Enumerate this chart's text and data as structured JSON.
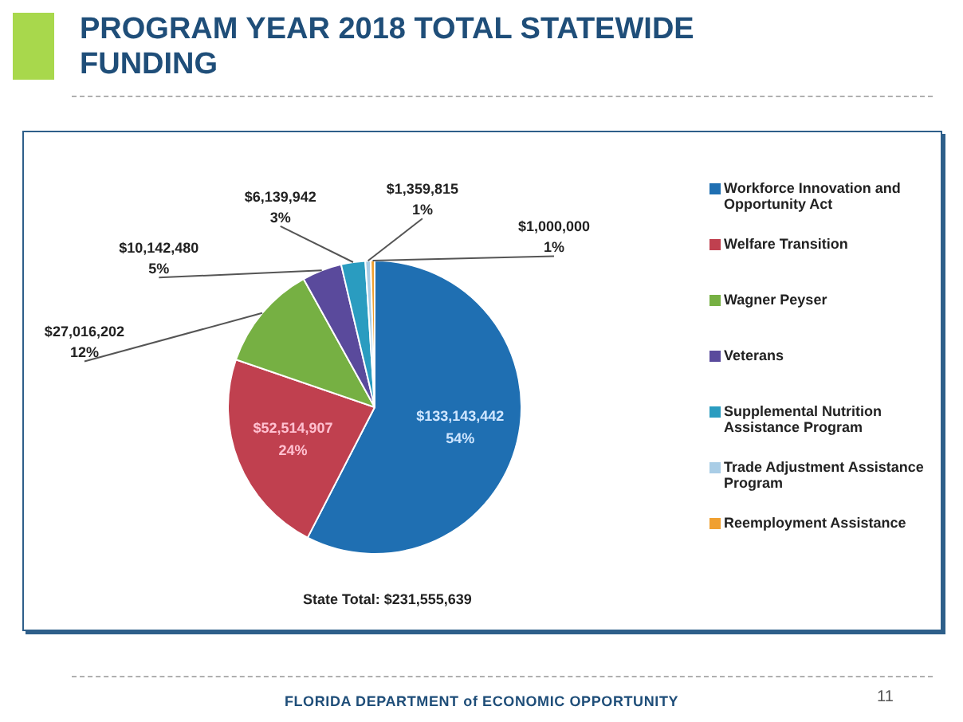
{
  "chart_data": {
    "type": "pie",
    "title": "PROGRAM YEAR 2018 TOTAL STATEWIDE FUNDING",
    "categories": [
      "Workforce Innovation and Opportunity Act",
      "Welfare Transition",
      "Wagner Peyser",
      "Veterans",
      "Supplemental Nutrition Assistance Program",
      "Trade Adjustment Assistance Program",
      "Reemployment Assistance"
    ],
    "values": [
      133143442,
      52514907,
      27016202,
      10142480,
      6139942,
      1359815,
      1000000
    ],
    "colors": [
      "#1f6fb2",
      "#c0404f",
      "#76b043",
      "#5a4a9c",
      "#2a9cc0",
      "#a9cde6",
      "#f0a030"
    ],
    "value_labels": [
      "$133,143,442\n54%",
      "$52,514,907\n24%",
      "$27,016,202\n12%",
      "$10,142,480\n5%",
      "$6,139,942\n3%",
      "$1,359,815\n1%",
      "$1,000,000\n1%"
    ],
    "legend": "right",
    "annotations": [
      "State Total:  $231,555,639",
      "FLORIDA DEPARTMENT of ECONOMIC OPPORTUNITY",
      "11"
    ]
  }
}
